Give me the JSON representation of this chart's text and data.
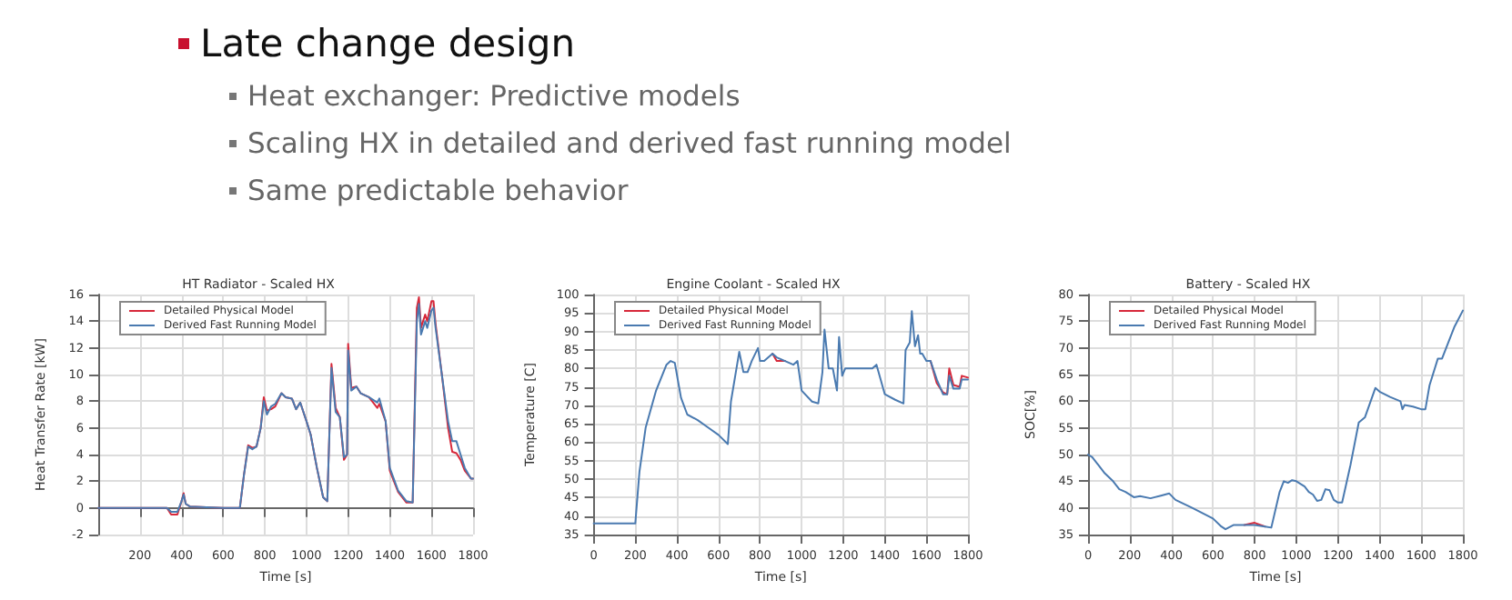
{
  "chart_data": [
    {
      "type": "other",
      "title": "Late change design",
      "annotations": [
        "Heat exchanger: Predictive models",
        "Scaling HX in detailed and derived fast running model",
        "Same predictable behavior"
      ]
    },
    {
      "type": "line",
      "title": "HT Radiator - Scaled HX",
      "xlabel": "Time [s]",
      "ylabel": "Heat Transfer Rate [kW]",
      "xlim": [
        0,
        1800
      ],
      "xticks": [
        200,
        400,
        600,
        800,
        1000,
        1200,
        1400,
        1600,
        1800
      ],
      "ylim": [
        -2,
        16
      ],
      "yticks": [
        -2,
        0,
        2,
        4,
        6,
        8,
        10,
        12,
        14,
        16
      ],
      "grid": true,
      "legend": "top left",
      "line_style": "solid",
      "marker": "none",
      "x": [
        0,
        330,
        350,
        380,
        400,
        410,
        420,
        440,
        600,
        680,
        700,
        720,
        740,
        760,
        780,
        795,
        810,
        830,
        850,
        880,
        900,
        930,
        950,
        970,
        1000,
        1020,
        1050,
        1080,
        1100,
        1120,
        1140,
        1160,
        1180,
        1195,
        1200,
        1215,
        1240,
        1260,
        1300,
        1340,
        1350,
        1380,
        1400,
        1440,
        1480,
        1510,
        1530,
        1540,
        1550,
        1570,
        1580,
        1600,
        1610,
        1620,
        1650,
        1680,
        1700,
        1720,
        1740,
        1760,
        1790,
        1800
      ],
      "series": [
        {
          "name": "Detailed Physical Model",
          "color": "#d7283a",
          "values": [
            0,
            0,
            -0.5,
            -0.5,
            0.5,
            1.1,
            0.3,
            0.1,
            0,
            0,
            2.5,
            4.7,
            4.5,
            4.6,
            6,
            8.3,
            7.3,
            7.4,
            7.6,
            8.6,
            8.3,
            8.2,
            7.4,
            7.9,
            6.5,
            5.5,
            3,
            0.8,
            0.5,
            10.8,
            7.5,
            6.8,
            3.6,
            4,
            12.3,
            9,
            9.1,
            8.6,
            8.3,
            7.5,
            7.8,
            6.5,
            2.8,
            1.2,
            0.4,
            0.4,
            15,
            15.8,
            13.5,
            14.5,
            14,
            15.5,
            15.5,
            13.8,
            10,
            6,
            4.2,
            4.1,
            3.6,
            2.8,
            2.2,
            2.2
          ]
        },
        {
          "name": "Derived Fast Running Model",
          "color": "#4a7ab0",
          "values": [
            0,
            0,
            -0.3,
            -0.3,
            0.5,
            1.0,
            0.3,
            0.1,
            0,
            0,
            2.5,
            4.6,
            4.4,
            4.6,
            6,
            8,
            7,
            7.6,
            7.8,
            8.6,
            8.3,
            8.2,
            7.4,
            7.9,
            6.5,
            5.5,
            3,
            0.8,
            0.5,
            10.5,
            7.2,
            6.8,
            3.8,
            4,
            11.8,
            8.8,
            9.1,
            8.6,
            8.3,
            7.9,
            8.2,
            6.5,
            3,
            1.3,
            0.5,
            0.4,
            14,
            15.3,
            13,
            14,
            13.5,
            14.8,
            15,
            13.5,
            10,
            6.5,
            5,
            5,
            4,
            3,
            2.2,
            2.2
          ]
        }
      ]
    },
    {
      "type": "line",
      "title": "Engine Coolant - Scaled HX",
      "xlabel": "Time [s]",
      "ylabel": "Temperature [C]",
      "xlim": [
        0,
        1800
      ],
      "xticks": [
        0,
        200,
        400,
        600,
        800,
        1000,
        1200,
        1400,
        1600,
        1800
      ],
      "ylim": [
        35,
        100
      ],
      "yticks": [
        35,
        40,
        45,
        50,
        55,
        60,
        65,
        70,
        75,
        80,
        85,
        90,
        95,
        100
      ],
      "grid": true,
      "legend": "top left",
      "line_style": "solid",
      "marker": "none",
      "x": [
        0,
        200,
        220,
        250,
        300,
        350,
        370,
        390,
        420,
        450,
        500,
        550,
        600,
        645,
        660,
        700,
        720,
        740,
        760,
        790,
        800,
        820,
        860,
        880,
        920,
        960,
        980,
        1000,
        1050,
        1080,
        1100,
        1110,
        1130,
        1150,
        1170,
        1180,
        1195,
        1210,
        1220,
        1250,
        1300,
        1340,
        1360,
        1400,
        1450,
        1490,
        1500,
        1520,
        1530,
        1545,
        1560,
        1570,
        1580,
        1600,
        1620,
        1650,
        1680,
        1700,
        1710,
        1730,
        1760,
        1770,
        1800
      ],
      "series": [
        {
          "name": "Detailed Physical Model",
          "color": "#d7283a",
          "values": [
            null,
            null,
            null,
            null,
            null,
            null,
            null,
            null,
            null,
            null,
            null,
            null,
            null,
            null,
            null,
            null,
            null,
            null,
            null,
            null,
            null,
            null,
            84,
            82,
            82,
            null,
            null,
            null,
            null,
            null,
            null,
            null,
            null,
            null,
            null,
            null,
            null,
            null,
            null,
            null,
            null,
            null,
            null,
            null,
            null,
            null,
            null,
            null,
            null,
            null,
            null,
            null,
            null,
            null,
            82,
            76,
            73.5,
            73,
            80,
            75.5,
            75,
            78,
            77.5
          ]
        },
        {
          "name": "Derived Fast Running Model",
          "color": "#4a7ab0",
          "values": [
            38,
            38,
            52,
            64,
            74,
            81,
            82,
            81.5,
            72,
            67.5,
            66,
            64,
            62,
            59.5,
            71,
            84.5,
            79,
            79,
            82,
            85.5,
            82,
            82,
            84,
            83,
            82,
            81,
            82,
            74,
            71,
            70.5,
            79,
            90.5,
            80,
            80,
            74,
            88.5,
            78,
            80,
            80,
            80,
            80,
            80,
            81,
            73,
            71.5,
            70.5,
            85,
            87,
            95.5,
            86,
            89,
            84,
            84,
            82,
            82,
            77,
            73,
            73,
            78,
            74.5,
            74.5,
            77,
            77
          ]
        }
      ]
    },
    {
      "type": "line",
      "title": "Battery - Scaled HX",
      "xlabel": "Time [s]",
      "ylabel": "SOC[%]",
      "xlim": [
        0,
        1800
      ],
      "xticks": [
        0,
        200,
        400,
        600,
        800,
        1000,
        1200,
        1400,
        1600,
        1800
      ],
      "ylim": [
        35,
        80
      ],
      "yticks": [
        35,
        40,
        45,
        50,
        55,
        60,
        65,
        70,
        75,
        80
      ],
      "grid": true,
      "legend": "top left",
      "line_style": "solid",
      "marker": "none",
      "x": [
        0,
        20,
        50,
        80,
        120,
        150,
        180,
        220,
        250,
        300,
        350,
        390,
        420,
        500,
        600,
        640,
        660,
        700,
        750,
        800,
        850,
        880,
        920,
        940,
        960,
        980,
        1000,
        1040,
        1060,
        1080,
        1100,
        1120,
        1140,
        1160,
        1180,
        1200,
        1220,
        1260,
        1300,
        1330,
        1380,
        1400,
        1450,
        1500,
        1510,
        1520,
        1560,
        1600,
        1620,
        1640,
        1680,
        1700,
        1720,
        1760,
        1800
      ],
      "series": [
        {
          "name": "Detailed Physical Model",
          "color": "#d7283a",
          "values": [
            null,
            null,
            null,
            null,
            null,
            null,
            null,
            null,
            null,
            null,
            null,
            null,
            null,
            null,
            null,
            null,
            null,
            null,
            36.8,
            37.2,
            36.5,
            null,
            null,
            null,
            null,
            null,
            null,
            null,
            null,
            null,
            null,
            null,
            null,
            null,
            null,
            null,
            null,
            null,
            null,
            null,
            null,
            null,
            null,
            null,
            null,
            null,
            null,
            null,
            null,
            null,
            null,
            null,
            null,
            null,
            null
          ]
        },
        {
          "name": "Derived Fast Running Model",
          "color": "#4a7ab0",
          "values": [
            50,
            49.5,
            48,
            46.5,
            45,
            43.5,
            43,
            42,
            42.2,
            41.8,
            42.3,
            42.7,
            41.5,
            40,
            38,
            36.5,
            36,
            36.8,
            36.8,
            36.8,
            36.5,
            36.3,
            43,
            45,
            44.7,
            45.2,
            45,
            44,
            43,
            42.5,
            41.3,
            41.5,
            43.5,
            43.3,
            41.5,
            41,
            41,
            48,
            56,
            57,
            62.5,
            61.8,
            60.8,
            60,
            58.5,
            59.3,
            59,
            58.5,
            58.5,
            63,
            68,
            68,
            70,
            74,
            77
          ]
        }
      ]
    }
  ]
}
